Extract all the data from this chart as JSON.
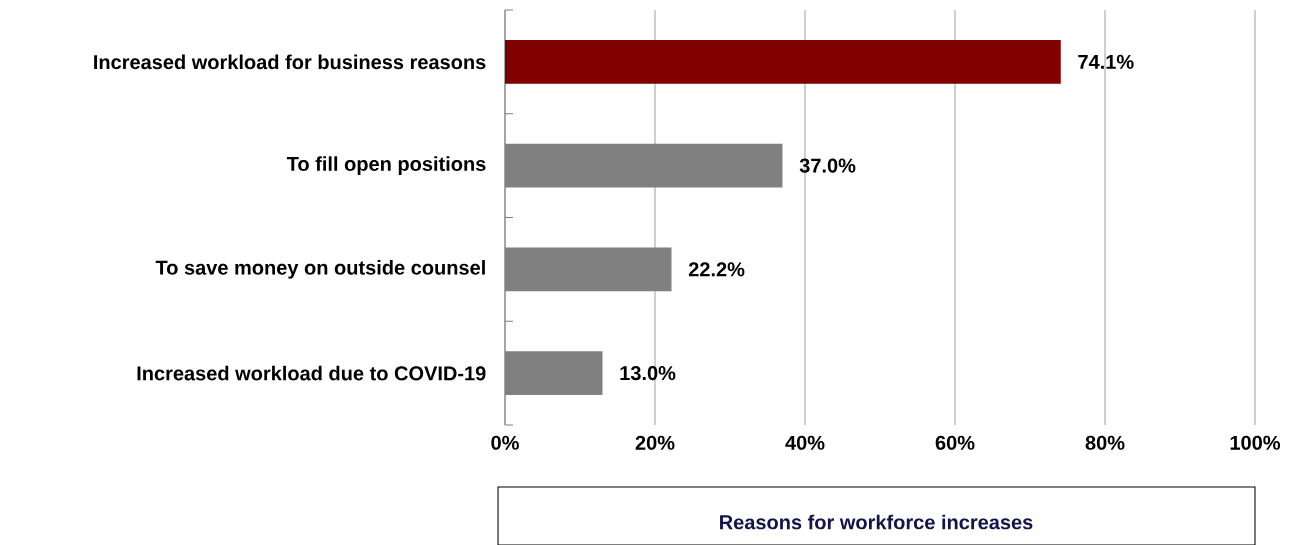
{
  "chart_data": {
    "type": "bar",
    "orientation": "horizontal",
    "title": "Reasons for workforce increases",
    "categories": [
      "Increased workload for business reasons",
      "To fill open positions",
      "To save money on outside counsel",
      "Increased workload due to COVID-19"
    ],
    "values": [
      74.1,
      37.0,
      22.2,
      13.0
    ],
    "value_labels": [
      "74.1%",
      "37.0%",
      "22.2%",
      "13.0%"
    ],
    "colors": [
      "#800000",
      "#808080",
      "#808080",
      "#808080"
    ],
    "xlim": [
      0,
      100
    ],
    "xticks": [
      {
        "value": 0,
        "label": "0%"
      },
      {
        "value": 20,
        "label": "20%"
      },
      {
        "value": 40,
        "label": "40%"
      },
      {
        "value": 60,
        "label": "60%"
      },
      {
        "value": 80,
        "label": "80%"
      },
      {
        "value": 100,
        "label": "100%"
      }
    ],
    "grid": "x"
  }
}
